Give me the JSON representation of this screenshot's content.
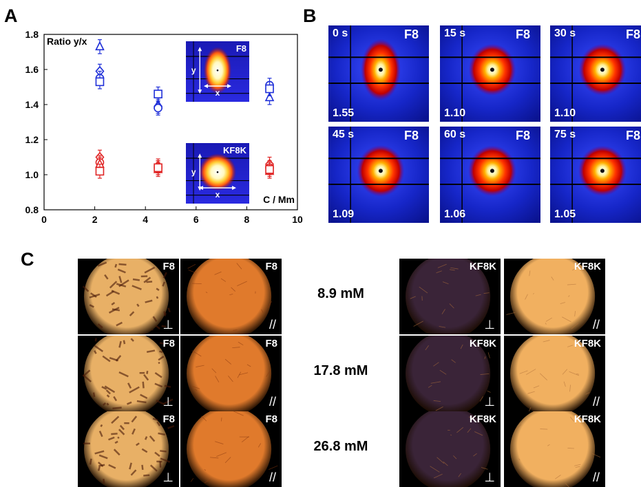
{
  "panels": {
    "a": "A",
    "b": "B",
    "c": "C"
  },
  "chart_data": {
    "type": "scatter",
    "ylabel": "Ratio y/x",
    "xlabel": "C / Mm",
    "xlim": [
      0,
      10
    ],
    "ylim": [
      0.8,
      1.8
    ],
    "xticks": [
      "0",
      "2",
      "4",
      "6",
      "8",
      "10"
    ],
    "yticks": [
      "0.8",
      "1.0",
      "1.2",
      "1.4",
      "1.6",
      "1.8"
    ],
    "grid": false,
    "series": [
      {
        "group": "F8",
        "color": "#1f2fd8",
        "marker": "triangle",
        "points": [
          {
            "x": 2.2,
            "y": 1.73
          },
          {
            "x": 4.5,
            "y": 1.4
          },
          {
            "x": 8.9,
            "y": 1.44
          }
        ]
      },
      {
        "group": "F8",
        "color": "#1f2fd8",
        "marker": "diamond",
        "points": [
          {
            "x": 2.2,
            "y": 1.59
          },
          {
            "x": 4.5,
            "y": 1.39
          },
          {
            "x": 8.9,
            "y": 1.49
          }
        ]
      },
      {
        "group": "F8",
        "color": "#1f2fd8",
        "marker": "circle",
        "points": [
          {
            "x": 2.2,
            "y": 1.55
          },
          {
            "x": 4.5,
            "y": 1.38
          },
          {
            "x": 8.9,
            "y": 1.51
          }
        ]
      },
      {
        "group": "F8",
        "color": "#1f2fd8",
        "marker": "square",
        "points": [
          {
            "x": 2.2,
            "y": 1.53
          },
          {
            "x": 4.5,
            "y": 1.46
          },
          {
            "x": 8.9,
            "y": 1.49
          }
        ]
      },
      {
        "group": "KF8K",
        "color": "#e02424",
        "marker": "diamond",
        "points": [
          {
            "x": 2.2,
            "y": 1.1
          },
          {
            "x": 4.5,
            "y": 1.05
          },
          {
            "x": 8.9,
            "y": 1.06
          }
        ]
      },
      {
        "group": "KF8K",
        "color": "#e02424",
        "marker": "circle",
        "points": [
          {
            "x": 2.2,
            "y": 1.07
          },
          {
            "x": 4.5,
            "y": 1.04
          },
          {
            "x": 8.9,
            "y": 1.04
          }
        ]
      },
      {
        "group": "KF8K",
        "color": "#e02424",
        "marker": "triangle",
        "points": [
          {
            "x": 2.2,
            "y": 1.06
          },
          {
            "x": 4.5,
            "y": 1.03
          },
          {
            "x": 8.9,
            "y": 1.02
          }
        ]
      },
      {
        "group": "KF8K",
        "color": "#e02424",
        "marker": "square",
        "points": [
          {
            "x": 2.2,
            "y": 1.02
          },
          {
            "x": 4.5,
            "y": 1.04
          },
          {
            "x": 8.9,
            "y": 1.03
          }
        ]
      }
    ],
    "error": 0.04,
    "insets": [
      {
        "label": "F8",
        "y_label": "y",
        "x_label": "x",
        "shape": "elongated"
      },
      {
        "label": "KF8K",
        "y_label": "y",
        "x_label": "x",
        "shape": "round"
      }
    ]
  },
  "panel_b": {
    "tiles": [
      {
        "time": "0 s",
        "sample": "F8",
        "ratio": "1.55",
        "elong": 1.55
      },
      {
        "time": "15 s",
        "sample": "F8",
        "ratio": "1.10",
        "elong": 1.1
      },
      {
        "time": "30 s",
        "sample": "F8",
        "ratio": "1.10",
        "elong": 1.1
      },
      {
        "time": "45 s",
        "sample": "F8",
        "ratio": "1.09",
        "elong": 1.09
      },
      {
        "time": "60 s",
        "sample": "F8",
        "ratio": "1.06",
        "elong": 1.06
      },
      {
        "time": "75 s",
        "sample": "F8",
        "ratio": "1.05",
        "elong": 1.05
      }
    ]
  },
  "panel_c": {
    "concentrations": [
      "8.9 mM",
      "17.8 mM",
      "26.8 mM"
    ],
    "cross_symbol": "⊥",
    "parallel_symbol": "//",
    "left": [
      {
        "label": "F8",
        "type": "cross",
        "row": 0
      },
      {
        "label": "F8",
        "type": "par",
        "row": 0
      },
      {
        "label": "F8",
        "type": "cross",
        "row": 1
      },
      {
        "label": "F8",
        "type": "par",
        "row": 1
      },
      {
        "label": "F8",
        "type": "cross",
        "row": 2
      },
      {
        "label": "F8",
        "type": "par",
        "row": 2
      }
    ],
    "right": [
      {
        "label": "KF8K",
        "type": "cross",
        "row": 0
      },
      {
        "label": "KF8K",
        "type": "par",
        "row": 0
      },
      {
        "label": "KF8K",
        "type": "cross",
        "row": 1
      },
      {
        "label": "KF8K",
        "type": "par",
        "row": 1
      },
      {
        "label": "KF8K",
        "type": "cross",
        "row": 2
      },
      {
        "label": "KF8K",
        "type": "par",
        "row": 2
      }
    ],
    "colors": {
      "f8_cross": "#e8b066",
      "f8_par": "#e07a2c",
      "kf_cross": "#3a2438",
      "kf_par": "#f1b060"
    }
  }
}
